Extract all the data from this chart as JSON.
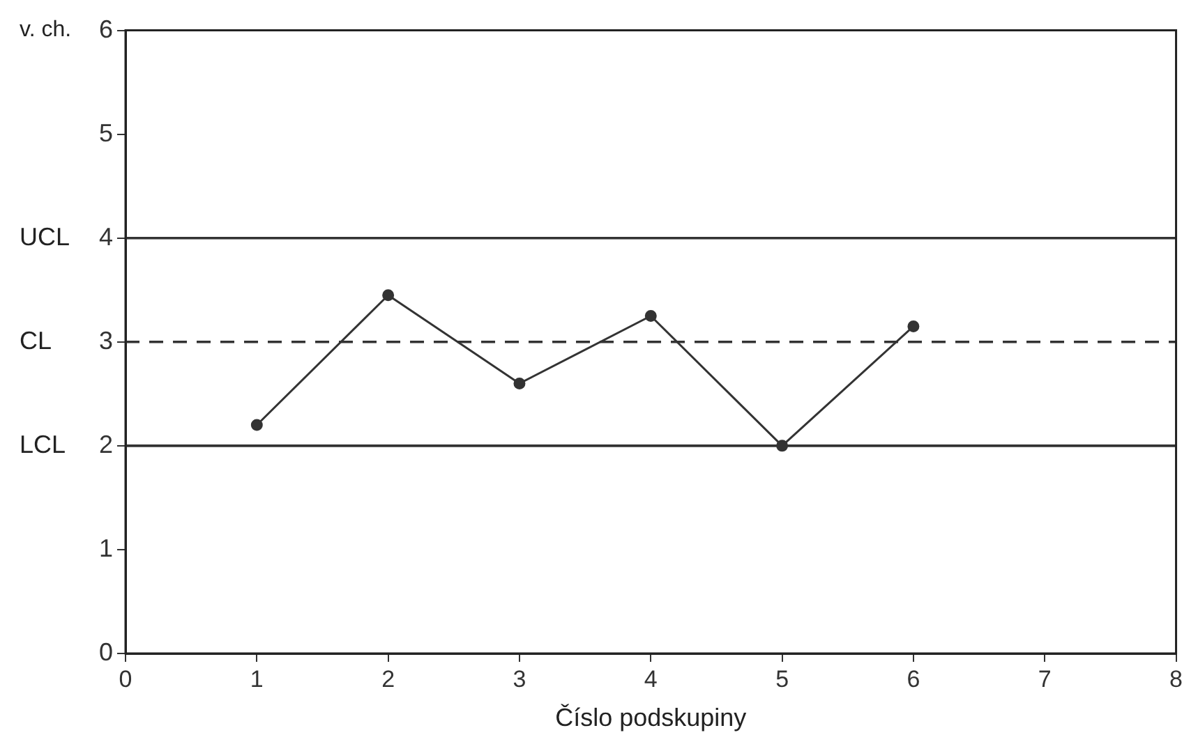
{
  "chart_data": {
    "type": "line",
    "ylabel": "v. ch.",
    "xlabel": "Číslo podskupiny",
    "x": [
      1,
      2,
      3,
      4,
      5,
      6
    ],
    "series": [
      {
        "color": "#333333",
        "values": [
          2.2,
          3.45,
          2.6,
          3.25,
          2.0,
          3.15
        ]
      }
    ],
    "xlim": [
      0,
      8
    ],
    "xticks": [
      0,
      1,
      2,
      3,
      4,
      5,
      6,
      7,
      8
    ],
    "ylim": [
      0,
      6
    ],
    "yticks": [
      0,
      1,
      2,
      3,
      4,
      5,
      6
    ],
    "ref_lines": [
      {
        "axis": "y",
        "value": 4,
        "label": "UCL",
        "line_style": "solid",
        "color": "#333333"
      },
      {
        "axis": "y",
        "value": 3,
        "label": "CL",
        "line_style": "dashed",
        "color": "#333333"
      },
      {
        "axis": "y",
        "value": 2,
        "label": "LCL",
        "line_style": "solid",
        "color": "#333333"
      }
    ],
    "grid": false,
    "legend": false,
    "marker": "circle",
    "line_style": "solid"
  }
}
